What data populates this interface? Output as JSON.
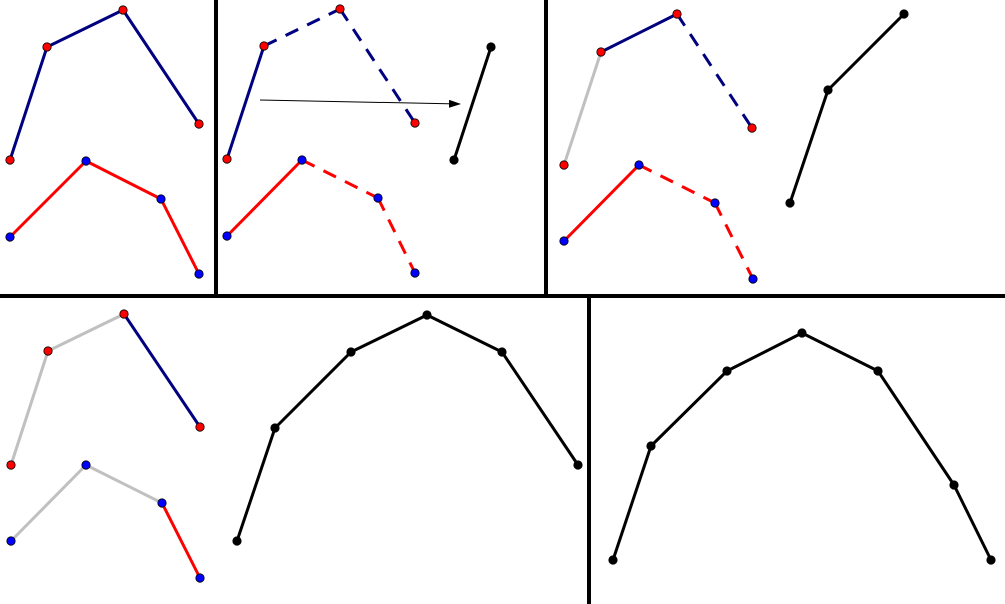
{
  "colors": {
    "blue_line": "#000080",
    "red_line": "#ff0000",
    "merged_line": "#000000",
    "consumed_line": "#c0c0c0",
    "red_point": "#ff0000",
    "blue_point": "#0000ff",
    "black_point": "#000000",
    "divider": "#000000",
    "arrow": "#000000"
  },
  "panels": [
    {
      "id": "panel-1",
      "polylines": [
        {
          "name": "blue-polyline",
          "color": "blue_line",
          "segments": [
            {
              "from": [
                10,
                160
              ],
              "to": [
                47,
                47
              ],
              "style": "solid"
            },
            {
              "from": [
                47,
                47
              ],
              "to": [
                123,
                10
              ],
              "style": "solid"
            },
            {
              "from": [
                123,
                10
              ],
              "to": [
                199,
                124
              ],
              "style": "solid"
            }
          ],
          "points": [
            [
              10,
              160,
              "red_point"
            ],
            [
              47,
              47,
              "red_point"
            ],
            [
              123,
              10,
              "red_point"
            ],
            [
              199,
              124,
              "red_point"
            ]
          ]
        },
        {
          "name": "red-polyline",
          "color": "red_line",
          "segments": [
            {
              "from": [
                10,
                237
              ],
              "to": [
                86,
                161
              ],
              "style": "solid"
            },
            {
              "from": [
                86,
                161
              ],
              "to": [
                161,
                199
              ],
              "style": "solid"
            },
            {
              "from": [
                161,
                199
              ],
              "to": [
                199,
                274
              ],
              "style": "solid"
            }
          ],
          "points": [
            [
              10,
              237,
              "blue_point"
            ],
            [
              86,
              161,
              "blue_point"
            ],
            [
              161,
              199,
              "blue_point"
            ],
            [
              199,
              274,
              "blue_point"
            ]
          ]
        }
      ]
    },
    {
      "id": "panel-2",
      "polylines": [
        {
          "name": "blue-polyline",
          "color": "blue_line",
          "segments": [
            {
              "from": [
                227,
                159
              ],
              "to": [
                264,
                46
              ],
              "style": "solid"
            },
            {
              "from": [
                264,
                46
              ],
              "to": [
                340,
                9
              ],
              "style": "dashed"
            },
            {
              "from": [
                340,
                9
              ],
              "to": [
                415,
                123
              ],
              "style": "dashed"
            }
          ],
          "points": [
            [
              227,
              159,
              "red_point"
            ],
            [
              264,
              46,
              "red_point"
            ],
            [
              340,
              9,
              "red_point"
            ],
            [
              415,
              123,
              "red_point"
            ]
          ]
        },
        {
          "name": "red-polyline",
          "color": "red_line",
          "segments": [
            {
              "from": [
                227,
                236
              ],
              "to": [
                302,
                160
              ],
              "style": "solid"
            },
            {
              "from": [
                302,
                160
              ],
              "to": [
                378,
                198
              ],
              "style": "dashed"
            },
            {
              "from": [
                378,
                198
              ],
              "to": [
                415,
                273
              ],
              "style": "dashed"
            }
          ],
          "points": [
            [
              227,
              236,
              "blue_point"
            ],
            [
              302,
              160,
              "blue_point"
            ],
            [
              378,
              198,
              "blue_point"
            ],
            [
              415,
              273,
              "blue_point"
            ]
          ]
        },
        {
          "name": "merged-polyline",
          "color": "merged_line",
          "segments": [
            {
              "from": [
                454,
                160
              ],
              "to": [
                491,
                47
              ],
              "style": "solid"
            }
          ],
          "points": [
            [
              454,
              160,
              "black_point"
            ],
            [
              491,
              47,
              "black_point"
            ]
          ]
        }
      ],
      "arrow": {
        "from": [
          260,
          100
        ],
        "to": [
          460,
          104
        ]
      }
    },
    {
      "id": "panel-3",
      "polylines": [
        {
          "name": "blue-polyline",
          "color": "blue_line",
          "segments": [
            {
              "from": [
                564,
                165
              ],
              "to": [
                601,
                52
              ],
              "style": "consumed"
            },
            {
              "from": [
                601,
                52
              ],
              "to": [
                677,
                14
              ],
              "style": "solid"
            },
            {
              "from": [
                677,
                14
              ],
              "to": [
                752,
                128
              ],
              "style": "dashed"
            }
          ],
          "points": [
            [
              564,
              165,
              "red_point"
            ],
            [
              601,
              52,
              "red_point"
            ],
            [
              677,
              14,
              "red_point"
            ],
            [
              752,
              128,
              "red_point"
            ]
          ]
        },
        {
          "name": "red-polyline",
          "color": "red_line",
          "segments": [
            {
              "from": [
                564,
                241
              ],
              "to": [
                639,
                165
              ],
              "style": "solid"
            },
            {
              "from": [
                639,
                165
              ],
              "to": [
                715,
                203
              ],
              "style": "dashed"
            },
            {
              "from": [
                715,
                203
              ],
              "to": [
                753,
                279
              ],
              "style": "dashed"
            }
          ],
          "points": [
            [
              564,
              241,
              "blue_point"
            ],
            [
              639,
              165,
              "blue_point"
            ],
            [
              715,
              203,
              "blue_point"
            ],
            [
              753,
              279,
              "blue_point"
            ]
          ]
        },
        {
          "name": "merged-polyline",
          "color": "merged_line",
          "segments": [
            {
              "from": [
                790,
                203
              ],
              "to": [
                828,
                90
              ],
              "style": "solid"
            },
            {
              "from": [
                828,
                90
              ],
              "to": [
                904,
                14
              ],
              "style": "solid"
            }
          ],
          "points": [
            [
              790,
              203,
              "black_point"
            ],
            [
              828,
              90,
              "black_point"
            ],
            [
              904,
              14,
              "black_point"
            ]
          ]
        }
      ]
    },
    {
      "id": "panel-4",
      "polylines": [
        {
          "name": "blue-polyline",
          "color": "blue_line",
          "segments": [
            {
              "from": [
                11,
                465
              ],
              "to": [
                48,
                351
              ],
              "style": "consumed"
            },
            {
              "from": [
                48,
                351
              ],
              "to": [
                124,
                314
              ],
              "style": "consumed"
            },
            {
              "from": [
                124,
                314
              ],
              "to": [
                200,
                427
              ],
              "style": "solid"
            }
          ],
          "points": [
            [
              11,
              465,
              "red_point"
            ],
            [
              48,
              351,
              "red_point"
            ],
            [
              124,
              314,
              "red_point"
            ],
            [
              200,
              427,
              "red_point"
            ]
          ]
        },
        {
          "name": "red-polyline",
          "color": "red_line",
          "segments": [
            {
              "from": [
                11,
                541
              ],
              "to": [
                86,
                465
              ],
              "style": "consumed"
            },
            {
              "from": [
                86,
                465
              ],
              "to": [
                162,
                503
              ],
              "style": "consumed"
            },
            {
              "from": [
                162,
                503
              ],
              "to": [
                200,
                578
              ],
              "style": "solid"
            }
          ],
          "points": [
            [
              11,
              541,
              "blue_point"
            ],
            [
              86,
              465,
              "blue_point"
            ],
            [
              162,
              503,
              "blue_point"
            ],
            [
              200,
              578,
              "blue_point"
            ]
          ]
        },
        {
          "name": "merged-polyline",
          "color": "merged_line",
          "segments": [
            {
              "from": [
                237,
                541
              ],
              "to": [
                275,
                428
              ],
              "style": "solid"
            },
            {
              "from": [
                275,
                428
              ],
              "to": [
                351,
                352
              ],
              "style": "solid"
            },
            {
              "from": [
                351,
                352
              ],
              "to": [
                427,
                315
              ],
              "style": "solid"
            },
            {
              "from": [
                427,
                315
              ],
              "to": [
                502,
                352
              ],
              "style": "solid"
            },
            {
              "from": [
                502,
                352
              ],
              "to": [
                578,
                465
              ],
              "style": "solid"
            }
          ],
          "points": [
            [
              237,
              541,
              "black_point"
            ],
            [
              275,
              428,
              "black_point"
            ],
            [
              351,
              352,
              "black_point"
            ],
            [
              427,
              315,
              "black_point"
            ],
            [
              502,
              352,
              "black_point"
            ],
            [
              578,
              465,
              "black_point"
            ]
          ]
        }
      ]
    },
    {
      "id": "panel-5",
      "polylines": [
        {
          "name": "merged-polyline",
          "color": "merged_line",
          "segments": [
            {
              "from": [
                613,
                560
              ],
              "to": [
                651,
                446
              ],
              "style": "solid"
            },
            {
              "from": [
                651,
                446
              ],
              "to": [
                727,
                371
              ],
              "style": "solid"
            },
            {
              "from": [
                727,
                371
              ],
              "to": [
                802,
                333
              ],
              "style": "solid"
            },
            {
              "from": [
                802,
                333
              ],
              "to": [
                878,
                371
              ],
              "style": "solid"
            },
            {
              "from": [
                878,
                371
              ],
              "to": [
                954,
                485
              ],
              "style": "solid"
            },
            {
              "from": [
                954,
                485
              ],
              "to": [
                991,
                560
              ],
              "style": "solid"
            }
          ],
          "points": [
            [
              613,
              560,
              "black_point"
            ],
            [
              651,
              446,
              "black_point"
            ],
            [
              727,
              371,
              "black_point"
            ],
            [
              802,
              333,
              "black_point"
            ],
            [
              878,
              371,
              "black_point"
            ],
            [
              954,
              485,
              "black_point"
            ],
            [
              991,
              560,
              "black_point"
            ]
          ]
        }
      ]
    }
  ]
}
